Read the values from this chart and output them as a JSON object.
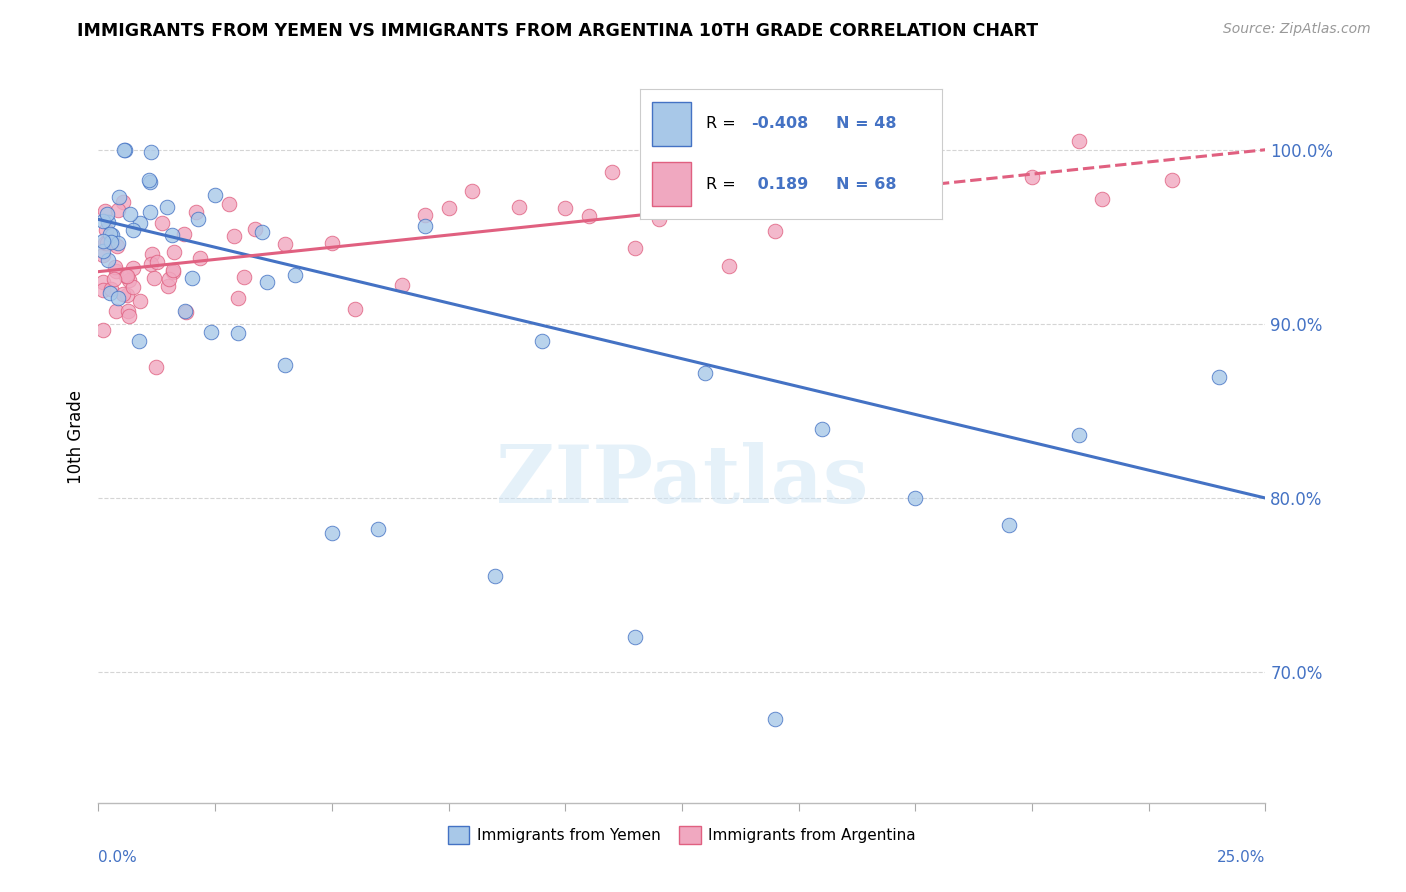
{
  "title": "IMMIGRANTS FROM YEMEN VS IMMIGRANTS FROM ARGENTINA 10TH GRADE CORRELATION CHART",
  "source": "Source: ZipAtlas.com",
  "ylabel": "10th Grade",
  "x_range": [
    0.0,
    0.25
  ],
  "y_range": [
    0.625,
    1.045
  ],
  "y_ticks": [
    0.7,
    0.8,
    0.9,
    1.0
  ],
  "y_tick_labels": [
    "70.0%",
    "80.0%",
    "90.0%",
    "100.0%"
  ],
  "x_tick_positions": [
    0.0,
    0.025,
    0.05,
    0.075,
    0.1,
    0.125,
    0.15,
    0.175,
    0.2,
    0.225,
    0.25
  ],
  "legend_text": [
    "R = -0.408   N = 48",
    "R =  0.189   N = 68"
  ],
  "watermark": "ZIPatlas",
  "color_yemen": "#a8c8e8",
  "color_argentina": "#f0a8c0",
  "color_line_yemen": "#4472c4",
  "color_line_argentina": "#e06080",
  "yemen_line_x0": 0.0,
  "yemen_line_y0": 0.96,
  "yemen_line_x1": 0.25,
  "yemen_line_y1": 0.8,
  "arg_line_x0": 0.0,
  "arg_line_y0": 0.93,
  "arg_line_x1": 0.25,
  "arg_line_y1": 1.0,
  "arg_line_solid_end": 0.135
}
